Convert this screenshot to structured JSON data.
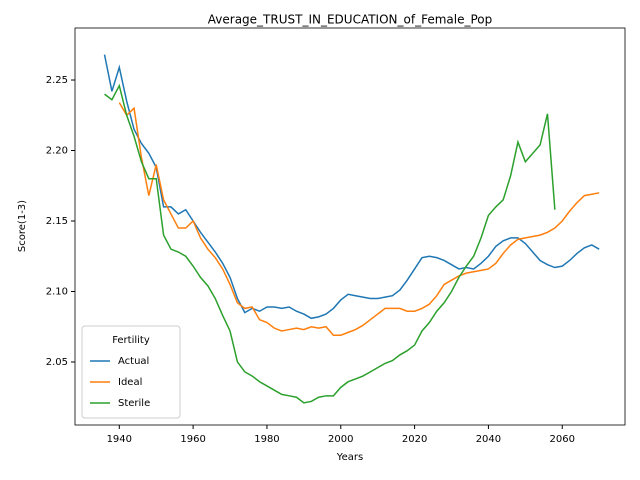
{
  "chart_data": {
    "type": "line",
    "title": "Average_TRUST_IN_EDUCATION_of_Female_Pop",
    "xlabel": "Years",
    "ylabel": "Score(1-3)",
    "x": [
      1936,
      1938,
      1940,
      1942,
      1944,
      1946,
      1948,
      1950,
      1952,
      1954,
      1956,
      1958,
      1960,
      1962,
      1964,
      1966,
      1968,
      1970,
      1972,
      1974,
      1976,
      1978,
      1980,
      1982,
      1984,
      1986,
      1988,
      1990,
      1992,
      1994,
      1996,
      1998,
      2000,
      2002,
      2004,
      2006,
      2008,
      2010,
      2012,
      2014,
      2016,
      2018,
      2020,
      2022,
      2024,
      2026,
      2028,
      2030,
      2032,
      2034,
      2036,
      2038,
      2040,
      2042,
      2044,
      2046,
      2048,
      2050,
      2052,
      2054,
      2056,
      2058,
      2060,
      2062,
      2064,
      2066,
      2068,
      2070
    ],
    "series": [
      {
        "name": "Actual",
        "color": "#1f77b4",
        "values": [
          2.268,
          2.242,
          2.259,
          2.235,
          2.215,
          2.205,
          2.198,
          2.188,
          2.16,
          2.16,
          2.155,
          2.158,
          2.15,
          2.142,
          2.135,
          2.128,
          2.12,
          2.11,
          2.095,
          2.085,
          2.088,
          2.086,
          2.089,
          2.089,
          2.088,
          2.089,
          2.086,
          2.084,
          2.081,
          2.082,
          2.084,
          2.088,
          2.094,
          2.098,
          2.097,
          2.096,
          2.095,
          2.095,
          2.096,
          2.097,
          2.101,
          2.108,
          2.116,
          2.124,
          2.125,
          2.124,
          2.122,
          2.119,
          2.116,
          2.117,
          2.116,
          2.12,
          2.125,
          2.132,
          2.136,
          2.138,
          2.138,
          2.134,
          2.128,
          2.122,
          2.119,
          2.117,
          2.118,
          2.122,
          2.127,
          2.131,
          2.133,
          2.13
        ]
      },
      {
        "name": "Ideal",
        "color": "#ff7f0e",
        "values": [
          null,
          null,
          2.234,
          2.225,
          2.23,
          2.195,
          2.168,
          2.19,
          2.165,
          2.155,
          2.145,
          2.145,
          2.15,
          2.138,
          2.13,
          2.124,
          2.116,
          2.105,
          2.092,
          2.088,
          2.089,
          2.08,
          2.078,
          2.074,
          2.072,
          2.073,
          2.074,
          2.073,
          2.075,
          2.074,
          2.075,
          2.069,
          2.069,
          2.071,
          2.073,
          2.076,
          2.08,
          2.084,
          2.088,
          2.088,
          2.088,
          2.086,
          2.086,
          2.088,
          2.091,
          2.097,
          2.105,
          2.108,
          2.111,
          2.113,
          2.114,
          2.115,
          2.116,
          2.12,
          2.127,
          2.133,
          2.137,
          2.138,
          2.139,
          2.14,
          2.142,
          2.145,
          2.15,
          2.157,
          2.163,
          2.168,
          2.169,
          2.17
        ]
      },
      {
        "name": "Sterile",
        "color": "#2ca02c",
        "values": [
          2.24,
          2.236,
          2.246,
          2.225,
          2.21,
          2.192,
          2.18,
          2.18,
          2.14,
          2.13,
          2.128,
          2.125,
          2.118,
          2.11,
          2.104,
          2.095,
          2.083,
          2.072,
          2.05,
          2.043,
          2.04,
          2.036,
          2.033,
          2.03,
          2.027,
          2.026,
          2.025,
          2.021,
          2.022,
          2.025,
          2.026,
          2.026,
          2.032,
          2.036,
          2.038,
          2.04,
          2.043,
          2.046,
          2.049,
          2.051,
          2.055,
          2.058,
          2.062,
          2.072,
          2.078,
          2.086,
          2.092,
          2.1,
          2.11,
          2.118,
          2.125,
          2.138,
          2.154,
          2.16,
          2.165,
          2.182,
          2.206,
          2.192,
          2.198,
          2.204,
          2.226,
          2.158,
          null,
          null,
          null,
          null,
          null,
          null
        ]
      }
    ],
    "xlim": [
      1928,
      2077
    ],
    "xticks": [
      1940,
      1960,
      1980,
      2000,
      2020,
      2040,
      2060
    ],
    "ylim": [
      2.0053,
      2.2869
    ],
    "yticks": [
      2.05,
      {
        "value": 2.1,
        "label": "2.10"
      },
      2.15,
      {
        "value": 2.2,
        "label": "2.20"
      },
      2.25
    ],
    "legend": {
      "title": "Fertility",
      "position": "lower left"
    }
  }
}
